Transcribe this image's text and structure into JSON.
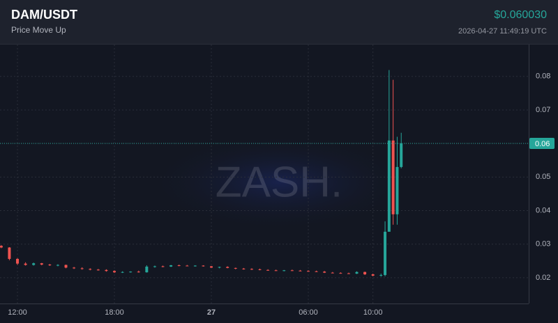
{
  "chart_data": {
    "type": "candlestick",
    "title": "DAM/USDT",
    "subtitle": "Price Move Up",
    "price_label": "$0.060030",
    "timestamp": "2026-04-27 11:49:19 UTC",
    "watermark": "ZASH.",
    "up_color": "#26a69a",
    "down_color": "#ef5350",
    "grid": true,
    "xlim": [
      10.92,
      43.64
    ],
    "xticks": [
      {
        "value": 12,
        "label": "12:00"
      },
      {
        "value": 18,
        "label": "18:00"
      },
      {
        "value": 24,
        "label": "27"
      },
      {
        "value": 30,
        "label": "06:00"
      },
      {
        "value": 34,
        "label": "10:00"
      }
    ],
    "ylim": [
      0.0123,
      0.0895
    ],
    "yticks": [
      0.02,
      0.03,
      0.04,
      0.05,
      0.06,
      0.07,
      0.08
    ],
    "last_price": {
      "value": 0.06003,
      "label": "0.06"
    },
    "x": [
      11,
      11.5,
      12,
      12.5,
      13,
      13.5,
      14,
      14.5,
      15,
      15.5,
      16,
      16.5,
      17,
      17.5,
      18,
      18.5,
      19,
      19.5,
      20,
      20.5,
      21,
      21.5,
      22,
      22.5,
      23,
      23.5,
      24,
      24.5,
      25,
      25.5,
      26,
      26.5,
      27,
      27.5,
      28,
      28.5,
      29,
      29.5,
      30,
      30.5,
      31,
      31.5,
      32,
      32.5,
      33,
      33.5,
      34,
      34.5,
      34.75,
      35,
      35.25,
      35.5,
      35.75
    ],
    "open": [
      0.0295,
      0.029,
      0.0256,
      0.0242,
      0.0238,
      0.0243,
      0.0239,
      0.0237,
      0.0238,
      0.023,
      0.0228,
      0.0226,
      0.0224,
      0.0223,
      0.022,
      0.0216,
      0.0217,
      0.0218,
      0.0216,
      0.0233,
      0.0234,
      0.0233,
      0.0237,
      0.0236,
      0.0235,
      0.0236,
      0.0234,
      0.023,
      0.0232,
      0.0229,
      0.0227,
      0.0226,
      0.0225,
      0.0223,
      0.0222,
      0.0221,
      0.0222,
      0.0221,
      0.022,
      0.0219,
      0.0218,
      0.0215,
      0.0214,
      0.0213,
      0.0212,
      0.0217,
      0.021,
      0.0206,
      0.0208,
      0.0337,
      0.0609,
      0.0389,
      0.053
    ],
    "high": [
      0.0297,
      0.0291,
      0.0258,
      0.0246,
      0.0245,
      0.0244,
      0.0241,
      0.024,
      0.0239,
      0.0232,
      0.0231,
      0.0228,
      0.0226,
      0.0225,
      0.0222,
      0.0219,
      0.0219,
      0.0221,
      0.0237,
      0.0236,
      0.0236,
      0.0238,
      0.0239,
      0.0238,
      0.0237,
      0.0237,
      0.0235,
      0.0233,
      0.0234,
      0.023,
      0.0229,
      0.0228,
      0.0227,
      0.0225,
      0.0224,
      0.0223,
      0.0224,
      0.0223,
      0.0222,
      0.0221,
      0.022,
      0.0217,
      0.0216,
      0.0215,
      0.0219,
      0.0218,
      0.0212,
      0.0212,
      0.0368,
      0.0819,
      0.079,
      0.062,
      0.0632
    ],
    "low": [
      0.0288,
      0.0252,
      0.0238,
      0.0236,
      0.0236,
      0.0237,
      0.0235,
      0.0234,
      0.0228,
      0.0226,
      0.0224,
      0.0222,
      0.0221,
      0.0218,
      0.0214,
      0.0214,
      0.0215,
      0.0215,
      0.0215,
      0.023,
      0.0231,
      0.0232,
      0.0234,
      0.0234,
      0.0233,
      0.0233,
      0.0229,
      0.0228,
      0.0228,
      0.0225,
      0.0224,
      0.0223,
      0.0222,
      0.0221,
      0.022,
      0.0219,
      0.022,
      0.0219,
      0.0218,
      0.0217,
      0.0214,
      0.0213,
      0.0212,
      0.0211,
      0.0211,
      0.0208,
      0.0204,
      0.0203,
      0.0204,
      0.0337,
      0.0358,
      0.0358,
      0.0526
    ],
    "close": [
      0.029,
      0.0256,
      0.0242,
      0.0238,
      0.0243,
      0.0239,
      0.0237,
      0.0238,
      0.023,
      0.0228,
      0.0226,
      0.0224,
      0.0223,
      0.022,
      0.0216,
      0.0217,
      0.0218,
      0.0216,
      0.0233,
      0.0234,
      0.0233,
      0.0237,
      0.0236,
      0.0235,
      0.0236,
      0.0234,
      0.023,
      0.0232,
      0.0229,
      0.0227,
      0.0226,
      0.0225,
      0.0223,
      0.0222,
      0.0221,
      0.0222,
      0.0221,
      0.022,
      0.0219,
      0.0218,
      0.0215,
      0.0214,
      0.0213,
      0.0212,
      0.0217,
      0.021,
      0.0206,
      0.0208,
      0.0337,
      0.0609,
      0.0389,
      0.053,
      0.06003
    ]
  }
}
